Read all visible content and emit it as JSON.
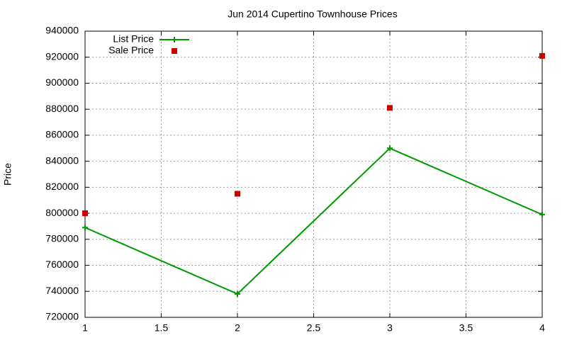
{
  "chart_data": {
    "type": "line",
    "title": "Jun 2014 Cupertino Townhouse Prices",
    "ylabel": "Price",
    "x": [
      1,
      2,
      3,
      4
    ],
    "series": [
      {
        "name": "List Price",
        "color": "#009900",
        "mode": "lines+points",
        "values": [
          789000,
          738000,
          850000,
          799000
        ]
      },
      {
        "name": "Sale Price",
        "color": "#cc0000",
        "mode": "points",
        "values": [
          800000,
          815000,
          881000,
          921000
        ]
      }
    ],
    "xlim": [
      1,
      4
    ],
    "xticks": [
      1,
      1.5,
      2,
      2.5,
      3,
      3.5,
      4
    ],
    "ylim": [
      720000,
      940000
    ],
    "yticks": [
      720000,
      740000,
      760000,
      780000,
      800000,
      820000,
      840000,
      860000,
      880000,
      900000,
      920000,
      940000
    ],
    "grid": true,
    "legend": "top-left"
  }
}
